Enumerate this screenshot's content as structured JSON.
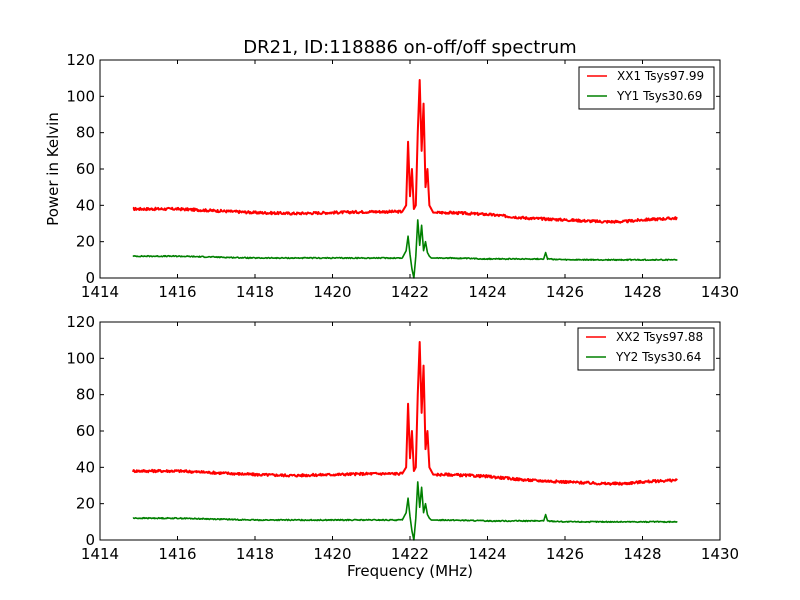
{
  "chart_data": [
    {
      "type": "line",
      "title": "DR21, ID:118886 on-off/off spectrum",
      "xlabel": "",
      "ylabel": "Power in Kelvin",
      "xlim": [
        1414,
        1430
      ],
      "ylim": [
        0,
        120
      ],
      "xticks": [
        "1414",
        "1416",
        "1418",
        "1420",
        "1422",
        "1424",
        "1426",
        "1428",
        "1430"
      ],
      "yticks": [
        "0",
        "20",
        "40",
        "60",
        "80",
        "100",
        "120"
      ],
      "grid": false,
      "legend_position": "top-right",
      "series": [
        {
          "name": "XX1 Tsys97.99",
          "color": "#ff0000",
          "x": [
            1414.85,
            1415.5,
            1416,
            1417,
            1418,
            1419,
            1420,
            1421,
            1421.8,
            1421.9,
            1421.95,
            1422.0,
            1422.05,
            1422.1,
            1422.15,
            1422.2,
            1422.25,
            1422.3,
            1422.35,
            1422.4,
            1422.45,
            1422.5,
            1422.55,
            1422.6,
            1422.7,
            1423,
            1424,
            1425,
            1426,
            1427,
            1427.5,
            1428,
            1428.9
          ],
          "y": [
            38,
            38,
            38,
            37,
            36,
            35.5,
            36,
            36.5,
            36.5,
            40,
            75,
            45,
            60,
            38,
            40,
            80,
            109,
            70,
            96,
            50,
            60,
            40,
            38,
            36,
            36,
            36,
            35,
            33,
            32,
            31,
            31,
            32,
            33
          ]
        },
        {
          "name": "YY1 Tsys30.69",
          "color": "#008000",
          "x": [
            1414.85,
            1415.5,
            1416,
            1417,
            1418,
            1419,
            1420,
            1421,
            1421.8,
            1421.9,
            1421.95,
            1422.0,
            1422.05,
            1422.1,
            1422.15,
            1422.2,
            1422.25,
            1422.3,
            1422.35,
            1422.4,
            1422.45,
            1422.5,
            1422.55,
            1422.6,
            1422.7,
            1423,
            1424,
            1425,
            1425.45,
            1425.5,
            1425.55,
            1426,
            1427,
            1428,
            1428.9
          ],
          "y": [
            12,
            12,
            12,
            11.5,
            11,
            11,
            11,
            11,
            11,
            15,
            23,
            13,
            5,
            0,
            12,
            32,
            18,
            29,
            15,
            20,
            14,
            12,
            11,
            11,
            11,
            11,
            10.5,
            10.5,
            10.5,
            14,
            10.5,
            10,
            10,
            10,
            10
          ]
        }
      ]
    },
    {
      "type": "line",
      "title": "",
      "xlabel": "Frequency (MHz)",
      "ylabel": "",
      "xlim": [
        1414,
        1430
      ],
      "ylim": [
        0,
        120
      ],
      "xticks": [
        "1414",
        "1416",
        "1418",
        "1420",
        "1422",
        "1424",
        "1426",
        "1428",
        "1430"
      ],
      "yticks": [
        "0",
        "20",
        "40",
        "60",
        "80",
        "100",
        "120"
      ],
      "grid": false,
      "legend_position": "top-right",
      "series": [
        {
          "name": "XX2 Tsys97.88",
          "color": "#ff0000",
          "x": [
            1414.85,
            1415.5,
            1416,
            1417,
            1418,
            1419,
            1420,
            1421,
            1421.8,
            1421.9,
            1421.95,
            1422.0,
            1422.05,
            1422.1,
            1422.15,
            1422.2,
            1422.25,
            1422.3,
            1422.35,
            1422.4,
            1422.45,
            1422.5,
            1422.55,
            1422.6,
            1422.7,
            1423,
            1424,
            1425,
            1426,
            1427,
            1427.5,
            1428,
            1428.9
          ],
          "y": [
            38,
            38,
            38,
            37,
            36,
            35.5,
            36,
            36.5,
            36.5,
            40,
            75,
            45,
            60,
            38,
            40,
            80,
            109,
            70,
            96,
            50,
            60,
            40,
            38,
            36,
            36,
            36,
            35,
            33,
            32,
            31,
            31,
            32,
            33
          ]
        },
        {
          "name": "YY2 Tsys30.64",
          "color": "#008000",
          "x": [
            1414.85,
            1415.5,
            1416,
            1417,
            1418,
            1419,
            1420,
            1421,
            1421.8,
            1421.9,
            1421.95,
            1422.0,
            1422.05,
            1422.1,
            1422.15,
            1422.2,
            1422.25,
            1422.3,
            1422.35,
            1422.4,
            1422.45,
            1422.5,
            1422.55,
            1422.6,
            1422.7,
            1423,
            1424,
            1425,
            1425.45,
            1425.5,
            1425.55,
            1426,
            1427,
            1428,
            1428.9
          ],
          "y": [
            12,
            12,
            12,
            11.5,
            11,
            11,
            11,
            11,
            11,
            15,
            23,
            13,
            5,
            0,
            12,
            32,
            18,
            29,
            15,
            20,
            14,
            12,
            11,
            11,
            11,
            11,
            10.5,
            10.5,
            10.5,
            14,
            10.5,
            10,
            10,
            10,
            10
          ]
        }
      ]
    }
  ]
}
